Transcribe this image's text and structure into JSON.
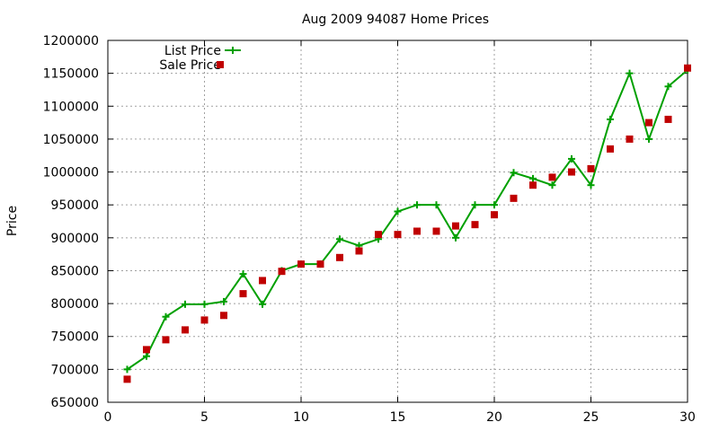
{
  "chart_data": {
    "type": "line",
    "title": "Aug 2009 94087 Home Prices",
    "xlabel": "",
    "ylabel": "Price",
    "xlim": [
      0,
      30
    ],
    "ylim": [
      650000,
      1200000
    ],
    "x_ticks": [
      0,
      5,
      10,
      15,
      20,
      25,
      30
    ],
    "y_ticks": [
      650000,
      700000,
      750000,
      800000,
      850000,
      900000,
      950000,
      1000000,
      1050000,
      1100000,
      1150000,
      1200000
    ],
    "grid": true,
    "legend_position": "top-left",
    "series": [
      {
        "name": "List Price",
        "style": "line+cross",
        "color": "#00a000",
        "x": [
          1,
          2,
          3,
          4,
          5,
          6,
          7,
          8,
          9,
          10,
          11,
          12,
          13,
          14,
          15,
          16,
          17,
          18,
          19,
          20,
          21,
          22,
          23,
          24,
          25,
          26,
          27,
          28,
          29,
          30
        ],
        "values": [
          700000,
          720000,
          780000,
          799000,
          799000,
          803000,
          845000,
          799000,
          850000,
          860000,
          860000,
          898000,
          888000,
          898000,
          940000,
          950000,
          950000,
          900000,
          950000,
          950000,
          999000,
          990000,
          980000,
          1020000,
          980000,
          1080000,
          1150000,
          1050000,
          1130000,
          1155000
        ]
      },
      {
        "name": "Sale Price",
        "style": "square",
        "color": "#c00000",
        "x": [
          1,
          2,
          3,
          4,
          5,
          6,
          7,
          8,
          9,
          10,
          11,
          12,
          13,
          14,
          15,
          16,
          17,
          18,
          19,
          20,
          21,
          22,
          23,
          24,
          25,
          26,
          27,
          28,
          29,
          30
        ],
        "values": [
          685000,
          730000,
          745000,
          760000,
          775000,
          782000,
          815000,
          835000,
          849000,
          860000,
          860000,
          870000,
          880000,
          905000,
          905000,
          910000,
          910000,
          918000,
          920000,
          935000,
          960000,
          980000,
          992000,
          1000000,
          1005000,
          1035000,
          1050000,
          1075000,
          1080000,
          1158000
        ]
      }
    ]
  }
}
